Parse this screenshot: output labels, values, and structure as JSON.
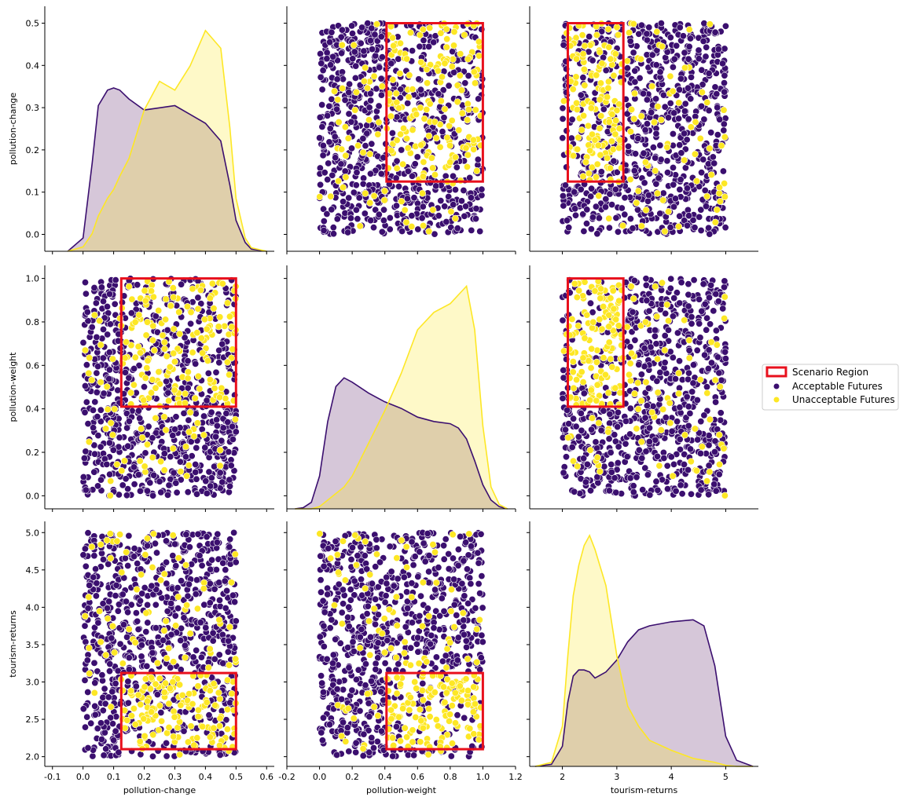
{
  "chart_data": {
    "type": "scatter",
    "layout": "pairplot",
    "variables": [
      {
        "name": "pollution-change",
        "lim": [
          -0.125,
          0.625
        ],
        "ticks": [
          -0.1,
          0.0,
          0.1,
          0.2,
          0.3,
          0.4,
          0.5,
          0.6
        ],
        "tick_labels": [
          "-0.1",
          "0.0",
          "0.1",
          "0.2",
          "0.3",
          "0.4",
          "0.5",
          "0.6"
        ],
        "range": [
          0.0,
          0.5
        ]
      },
      {
        "name": "pollution-weight",
        "lim": [
          -0.2,
          1.2
        ],
        "ticks": [
          -0.2,
          0.0,
          0.2,
          0.4,
          0.6,
          0.8,
          1.0,
          1.2
        ],
        "tick_labels": [
          "-0.2",
          "0.0",
          "0.2",
          "0.4",
          "0.6",
          "0.8",
          "1.0",
          "1.2"
        ],
        "range": [
          0.0,
          1.0
        ]
      },
      {
        "name": "tourism-returns",
        "lim": [
          1.4,
          5.6
        ],
        "ticks": [
          2,
          3,
          4,
          5
        ],
        "tick_labels": [
          "2",
          "3",
          "4",
          "5"
        ],
        "range": [
          2.0,
          5.0
        ]
      }
    ],
    "row_axes": [
      {
        "lim": [
          -0.04,
          0.54
        ],
        "ticks": [
          0.0,
          0.1,
          0.2,
          0.3,
          0.4,
          0.5
        ],
        "tick_labels": [
          "0.0",
          "0.1",
          "0.2",
          "0.3",
          "0.4",
          "0.5"
        ]
      },
      {
        "lim": [
          -0.06,
          1.06
        ],
        "ticks": [
          0.0,
          0.2,
          0.4,
          0.6,
          0.8,
          1.0
        ],
        "tick_labels": [
          "0.0",
          "0.2",
          "0.4",
          "0.6",
          "0.8",
          "1.0"
        ]
      },
      {
        "lim": [
          1.87,
          5.15
        ],
        "ticks": [
          2.0,
          2.5,
          3.0,
          3.5,
          4.0,
          4.5,
          5.0
        ],
        "tick_labels": [
          "2.0",
          "2.5",
          "3.0",
          "3.5",
          "4.0",
          "4.5",
          "5.0"
        ]
      }
    ],
    "scenario_region": {
      "pollution-change": [
        0.125,
        0.5
      ],
      "pollution-weight": [
        0.41,
        1.0
      ],
      "tourism-returns": [
        2.1,
        3.12
      ]
    },
    "series": [
      {
        "name": "Acceptable Futures",
        "color": "#3b0f6f",
        "fill": "rgba(68,1,84,0.22)"
      },
      {
        "name": "Unacceptable Futures",
        "color": "#fde725",
        "fill": "rgba(253,231,37,0.25)"
      }
    ],
    "kde": {
      "pollution-change": {
        "x": [
          -0.05,
          0.0,
          0.03,
          0.05,
          0.08,
          0.1,
          0.12,
          0.15,
          0.2,
          0.25,
          0.3,
          0.35,
          0.4,
          0.45,
          0.48,
          0.5,
          0.53,
          0.55,
          0.6
        ],
        "Acceptable Futures": [
          0.0,
          0.03,
          0.2,
          0.33,
          0.365,
          0.37,
          0.365,
          0.345,
          0.32,
          0.325,
          0.33,
          0.31,
          0.29,
          0.25,
          0.15,
          0.07,
          0.02,
          0.005,
          0.0
        ],
        "Unacceptable Futures": [
          0.0,
          0.01,
          0.04,
          0.08,
          0.12,
          0.14,
          0.17,
          0.21,
          0.32,
          0.385,
          0.365,
          0.42,
          0.5,
          0.46,
          0.28,
          0.12,
          0.03,
          0.008,
          0.0
        ]
      },
      "pollution-weight": {
        "x": [
          -0.15,
          -0.1,
          -0.05,
          0.0,
          0.05,
          0.1,
          0.15,
          0.2,
          0.3,
          0.4,
          0.5,
          0.6,
          0.7,
          0.8,
          0.85,
          0.9,
          0.95,
          1.0,
          1.05,
          1.1,
          1.15
        ],
        "Acceptable Futures": [
          0.0,
          0.005,
          0.03,
          0.15,
          0.4,
          0.56,
          0.6,
          0.58,
          0.53,
          0.49,
          0.46,
          0.42,
          0.4,
          0.39,
          0.37,
          0.32,
          0.22,
          0.11,
          0.04,
          0.01,
          0.0
        ],
        "Unacceptable Futures": [
          0.0,
          0.0,
          0.0,
          0.01,
          0.04,
          0.07,
          0.1,
          0.15,
          0.3,
          0.45,
          0.62,
          0.82,
          0.9,
          0.94,
          0.98,
          1.02,
          0.82,
          0.38,
          0.1,
          0.02,
          0.0
        ]
      },
      "tourism-returns": {
        "x": [
          1.5,
          1.8,
          2.0,
          2.1,
          2.2,
          2.3,
          2.4,
          2.5,
          2.6,
          2.8,
          3.0,
          3.2,
          3.4,
          3.6,
          4.0,
          4.4,
          4.6,
          4.8,
          5.0,
          5.2,
          5.5
        ],
        "Acceptable Futures": [
          0.0,
          0.01,
          0.1,
          0.32,
          0.45,
          0.48,
          0.48,
          0.47,
          0.44,
          0.47,
          0.53,
          0.62,
          0.68,
          0.7,
          0.72,
          0.73,
          0.7,
          0.5,
          0.15,
          0.03,
          0.0
        ],
        "Unacceptable Futures": [
          0.0,
          0.02,
          0.2,
          0.55,
          0.85,
          1.0,
          1.1,
          1.15,
          1.08,
          0.9,
          0.55,
          0.3,
          0.2,
          0.13,
          0.08,
          0.04,
          0.03,
          0.02,
          0.005,
          0.0,
          0.0
        ]
      }
    },
    "kde_ylim": {
      "pollution-change": [
        0,
        0.555
      ],
      "pollution-weight": [
        0,
        1.115
      ],
      "tourism-returns": [
        0,
        1.22
      ]
    },
    "legend": {
      "placement": "right",
      "entries": [
        "Scenario Region",
        "Acceptable Futures",
        "Unacceptable Futures"
      ]
    },
    "region_color": "#e8101d",
    "n_points": 1000
  }
}
